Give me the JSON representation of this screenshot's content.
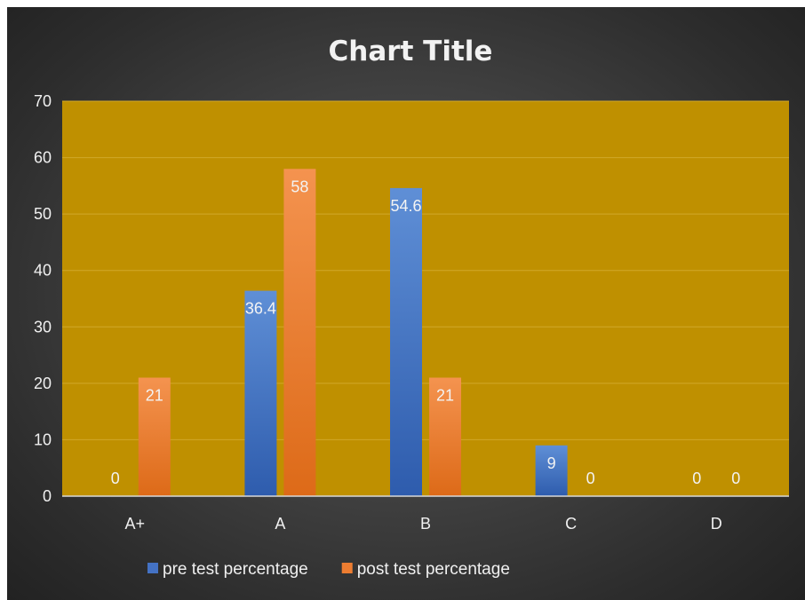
{
  "chart_data": {
    "type": "bar",
    "title": "Chart Title",
    "categories": [
      "A+",
      "A",
      "B",
      "C",
      "D"
    ],
    "series": [
      {
        "name": "pre test percentage",
        "values": [
          0,
          36.4,
          54.6,
          9,
          0
        ],
        "color": "#4472c4"
      },
      {
        "name": "post test percentage",
        "values": [
          21,
          58,
          21,
          0,
          0
        ],
        "color": "#ed7d31"
      }
    ],
    "ylim": [
      0,
      70
    ],
    "yticks": [
      0,
      10,
      20,
      30,
      40,
      50,
      60,
      70
    ],
    "grid": true,
    "legend": "bottom",
    "plot_background": "#bf9000",
    "data_labels": true
  }
}
